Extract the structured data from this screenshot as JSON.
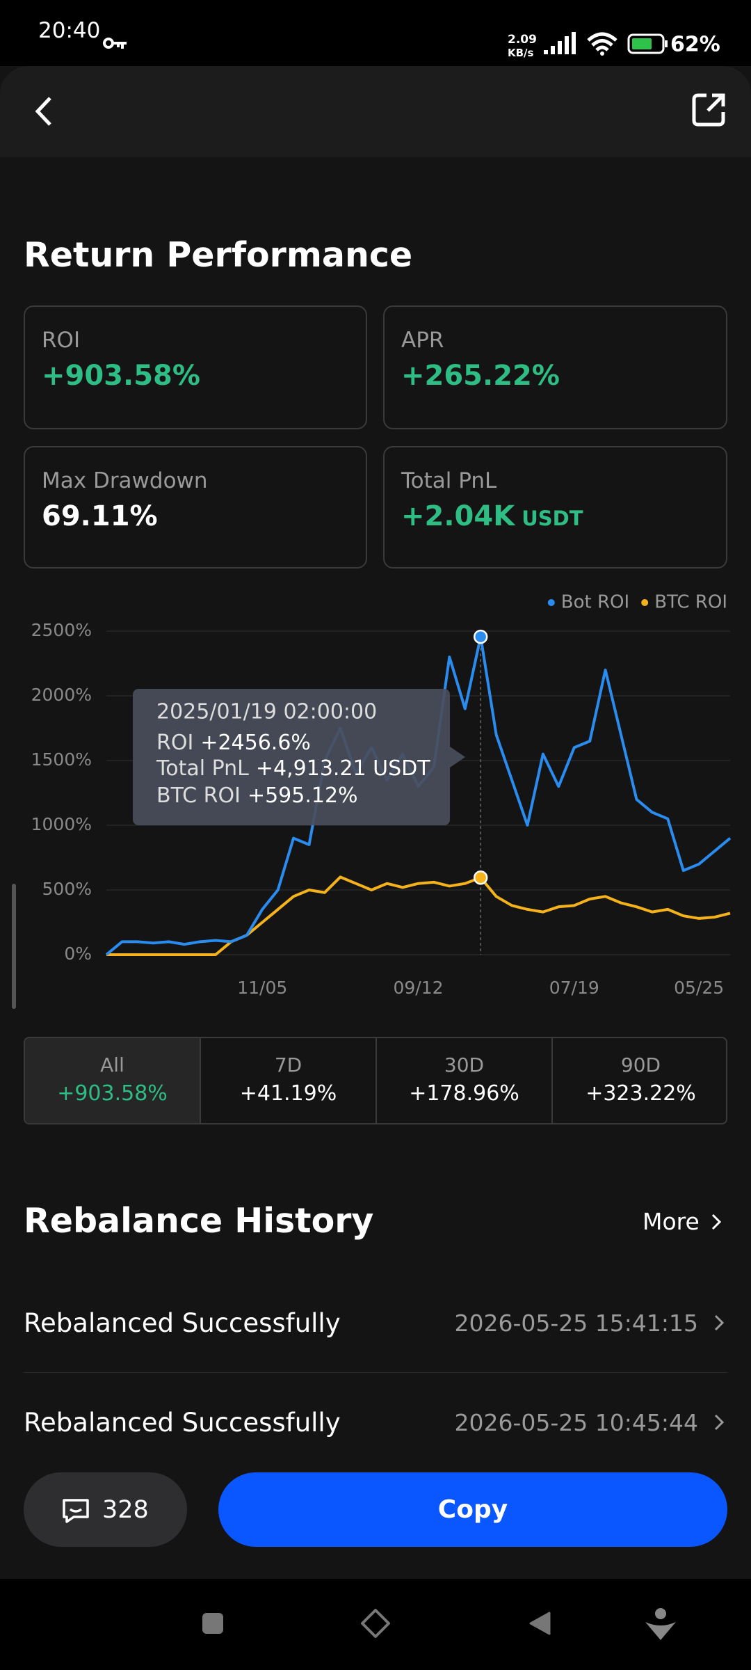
{
  "status_bar": {
    "time": "20:40",
    "speed": "2.09",
    "speed_unit": "KB/s",
    "battery": "62%"
  },
  "return_performance": {
    "title": "Return Performance",
    "cards": [
      {
        "label": "ROI",
        "value": "+903.58%"
      },
      {
        "label": "APR",
        "value": "+265.22%"
      },
      {
        "label": "Max Drawdown",
        "value": "69.11%"
      },
      {
        "label": "Total PnL",
        "value": "+2.04K",
        "unit": "USDT"
      }
    ]
  },
  "chart_data": {
    "type": "line",
    "categories": [
      null,
      null,
      null,
      null,
      null,
      null,
      null,
      null,
      null,
      null,
      "11/05",
      null,
      null,
      null,
      null,
      null,
      null,
      null,
      null,
      null,
      "09/12",
      null,
      null,
      null,
      null,
      null,
      null,
      null,
      null,
      null,
      "07/19",
      null,
      null,
      null,
      null,
      null,
      null,
      null,
      "05/25",
      null,
      null
    ],
    "series": [
      {
        "name": "Bot ROI",
        "color": "#2b8cf0",
        "values": [
          0,
          100,
          100,
          90,
          100,
          80,
          100,
          110,
          100,
          150,
          350,
          500,
          900,
          850,
          1500,
          1750,
          1400,
          1600,
          1350,
          1550,
          1300,
          1450,
          2300,
          1900,
          2456.6,
          1700,
          1350,
          1000,
          1550,
          1300,
          1600,
          1650,
          2200,
          1700,
          1200,
          1100,
          1050,
          650,
          700,
          800,
          900
        ]
      },
      {
        "name": "BTC ROI",
        "color": "#f5b21b",
        "values": [
          0,
          0,
          0,
          0,
          0,
          0,
          0,
          0,
          100,
          150,
          250,
          350,
          450,
          500,
          480,
          600,
          550,
          500,
          550,
          520,
          550,
          560,
          530,
          550,
          595.12,
          450,
          380,
          350,
          330,
          370,
          380,
          430,
          450,
          400,
          370,
          330,
          350,
          300,
          280,
          290,
          320
        ]
      }
    ],
    "ylim": [
      0,
      2500
    ],
    "yticks": [
      {
        "value": 0,
        "label": "0%"
      },
      {
        "value": 500,
        "label": "500%"
      },
      {
        "value": 1000,
        "label": "1000%"
      },
      {
        "value": 1500,
        "label": "1500%"
      },
      {
        "value": 2000,
        "label": "2000%"
      },
      {
        "value": 2500,
        "label": "2500%"
      }
    ],
    "grid": true,
    "legend": "top-right",
    "tooltip": {
      "date": "2025/01/19 02:00:00",
      "roi_label": "ROI",
      "roi": "+2456.6%",
      "pnl_label": "Total PnL",
      "pnl": "+4,913.21 USDT",
      "btc_label": "BTC ROI",
      "btc": "+595.12%"
    }
  },
  "ranges": [
    {
      "label": "All",
      "value": "+903.58%"
    },
    {
      "label": "7D",
      "value": "+41.19%"
    },
    {
      "label": "30D",
      "value": "+178.96%"
    },
    {
      "label": "90D",
      "value": "+323.22%"
    }
  ],
  "rebalance_history": {
    "title": "Rebalance History",
    "more": "More",
    "rows": [
      {
        "status": "Rebalanced Successfully",
        "time": "2026-05-25 15:41:15"
      },
      {
        "status": "Rebalanced Successfully",
        "time": "2026-05-25 10:45:44"
      }
    ]
  },
  "footer": {
    "comments": "328",
    "button": "Copy"
  }
}
